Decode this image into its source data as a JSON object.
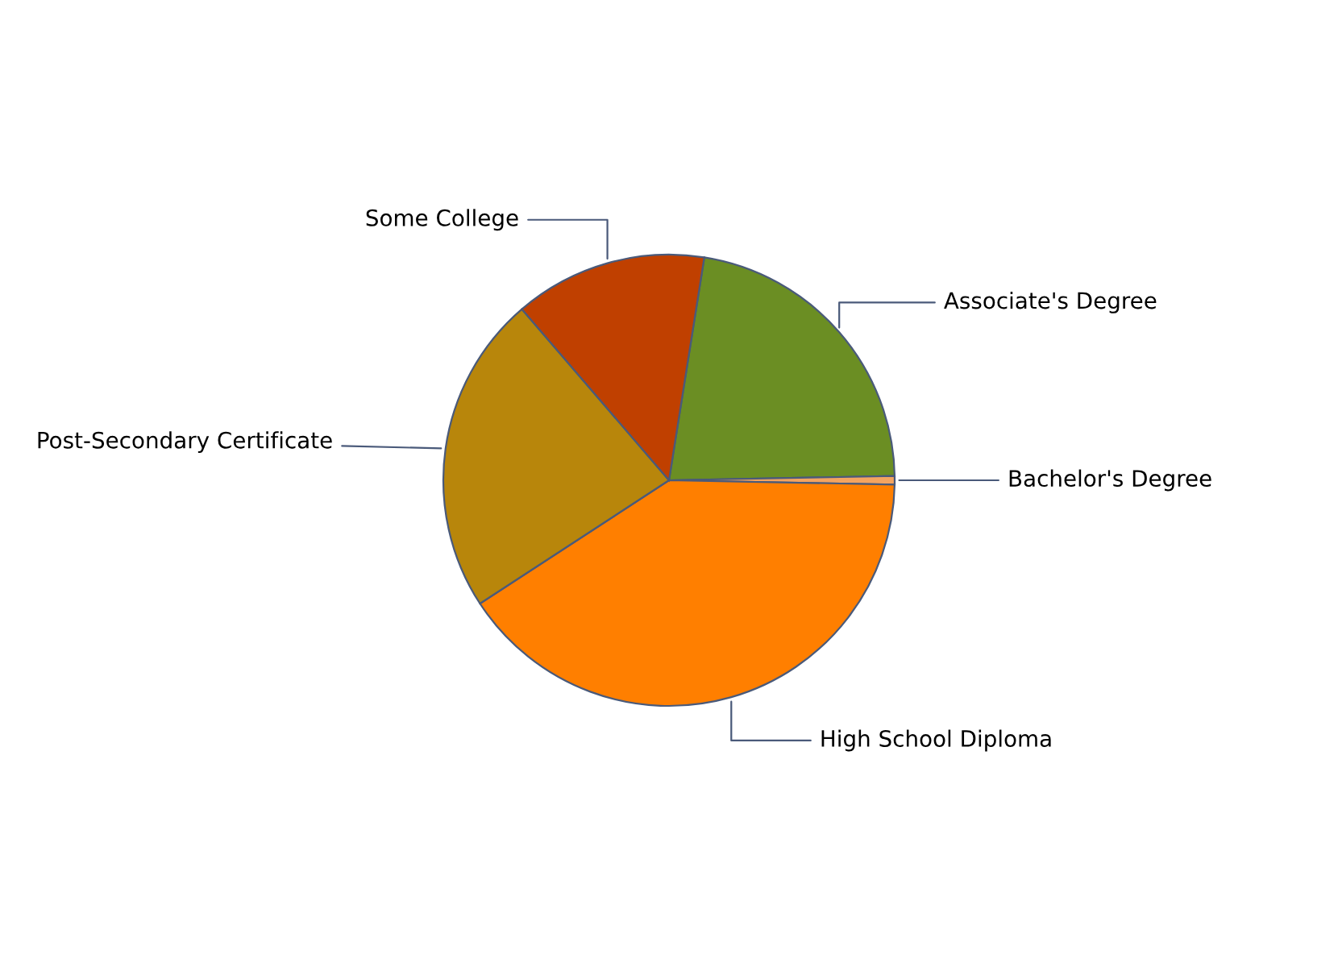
{
  "chart_data": {
    "type": "pie",
    "categories": [
      "Associate's Degree",
      "Bachelor's Degree",
      "High School Diploma",
      "Post-Secondary Certificate",
      "Some College"
    ],
    "values": [
      22.2,
      0.6,
      40.5,
      22.9,
      13.8
    ],
    "colors": [
      "#6b8e23",
      "#f4a460",
      "#ff7f00",
      "#b8860b",
      "#c04000"
    ],
    "legend": false
  }
}
